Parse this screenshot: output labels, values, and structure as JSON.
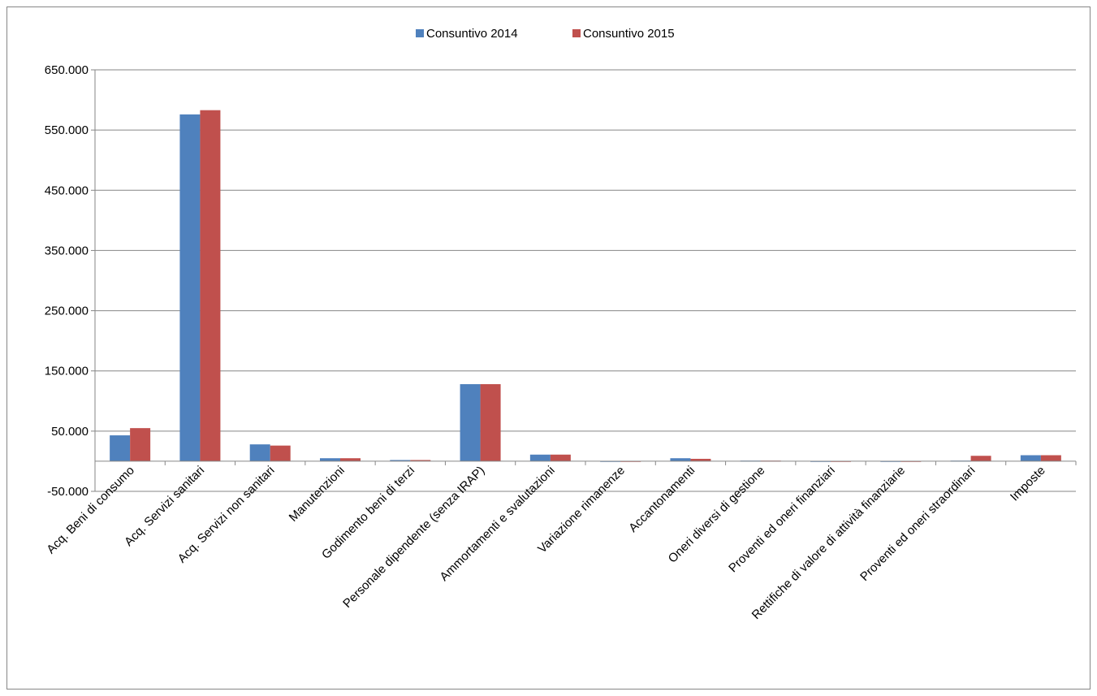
{
  "chart_data": {
    "type": "bar",
    "title": "",
    "xlabel": "",
    "ylabel": "",
    "ylim": [
      -50000,
      650000
    ],
    "yticks": [
      -50000,
      50000,
      150000,
      250000,
      350000,
      450000,
      550000,
      650000
    ],
    "ytick_labels": [
      "-50.000",
      "50.000",
      "150.000",
      "250.000",
      "350.000",
      "450.000",
      "550.000",
      "650.000"
    ],
    "grid": true,
    "legend_position": "top-center",
    "categories": [
      "Acq. Beni di consumo",
      "Acq. Servizi sanitari",
      "Acq. Servizi non sanitari",
      "Manutenzioni",
      "Godimento beni di terzi",
      "Personale dipendente (senza IRAP)",
      "Ammortamenti e svalutazioni",
      "Variazione rimanenze",
      "Accantonamenti",
      "Oneri diversi di gestione",
      "Proventi ed oneri finanziari",
      "Rettifiche di valore di attività finanziarie",
      "Proventi ed oneri straordinari",
      "Imposte"
    ],
    "series": [
      {
        "name": "Consuntivo 2014",
        "color": "#4F81BD",
        "values": [
          43000,
          576000,
          28000,
          5000,
          2000,
          128000,
          11000,
          0,
          5000,
          1000,
          0,
          0,
          1000,
          10000
        ]
      },
      {
        "name": "Consuntivo 2015",
        "color": "#C0504D",
        "values": [
          55000,
          583000,
          26000,
          5000,
          2000,
          128000,
          11000,
          0,
          4000,
          1000,
          0,
          0,
          9000,
          10000
        ]
      }
    ]
  }
}
